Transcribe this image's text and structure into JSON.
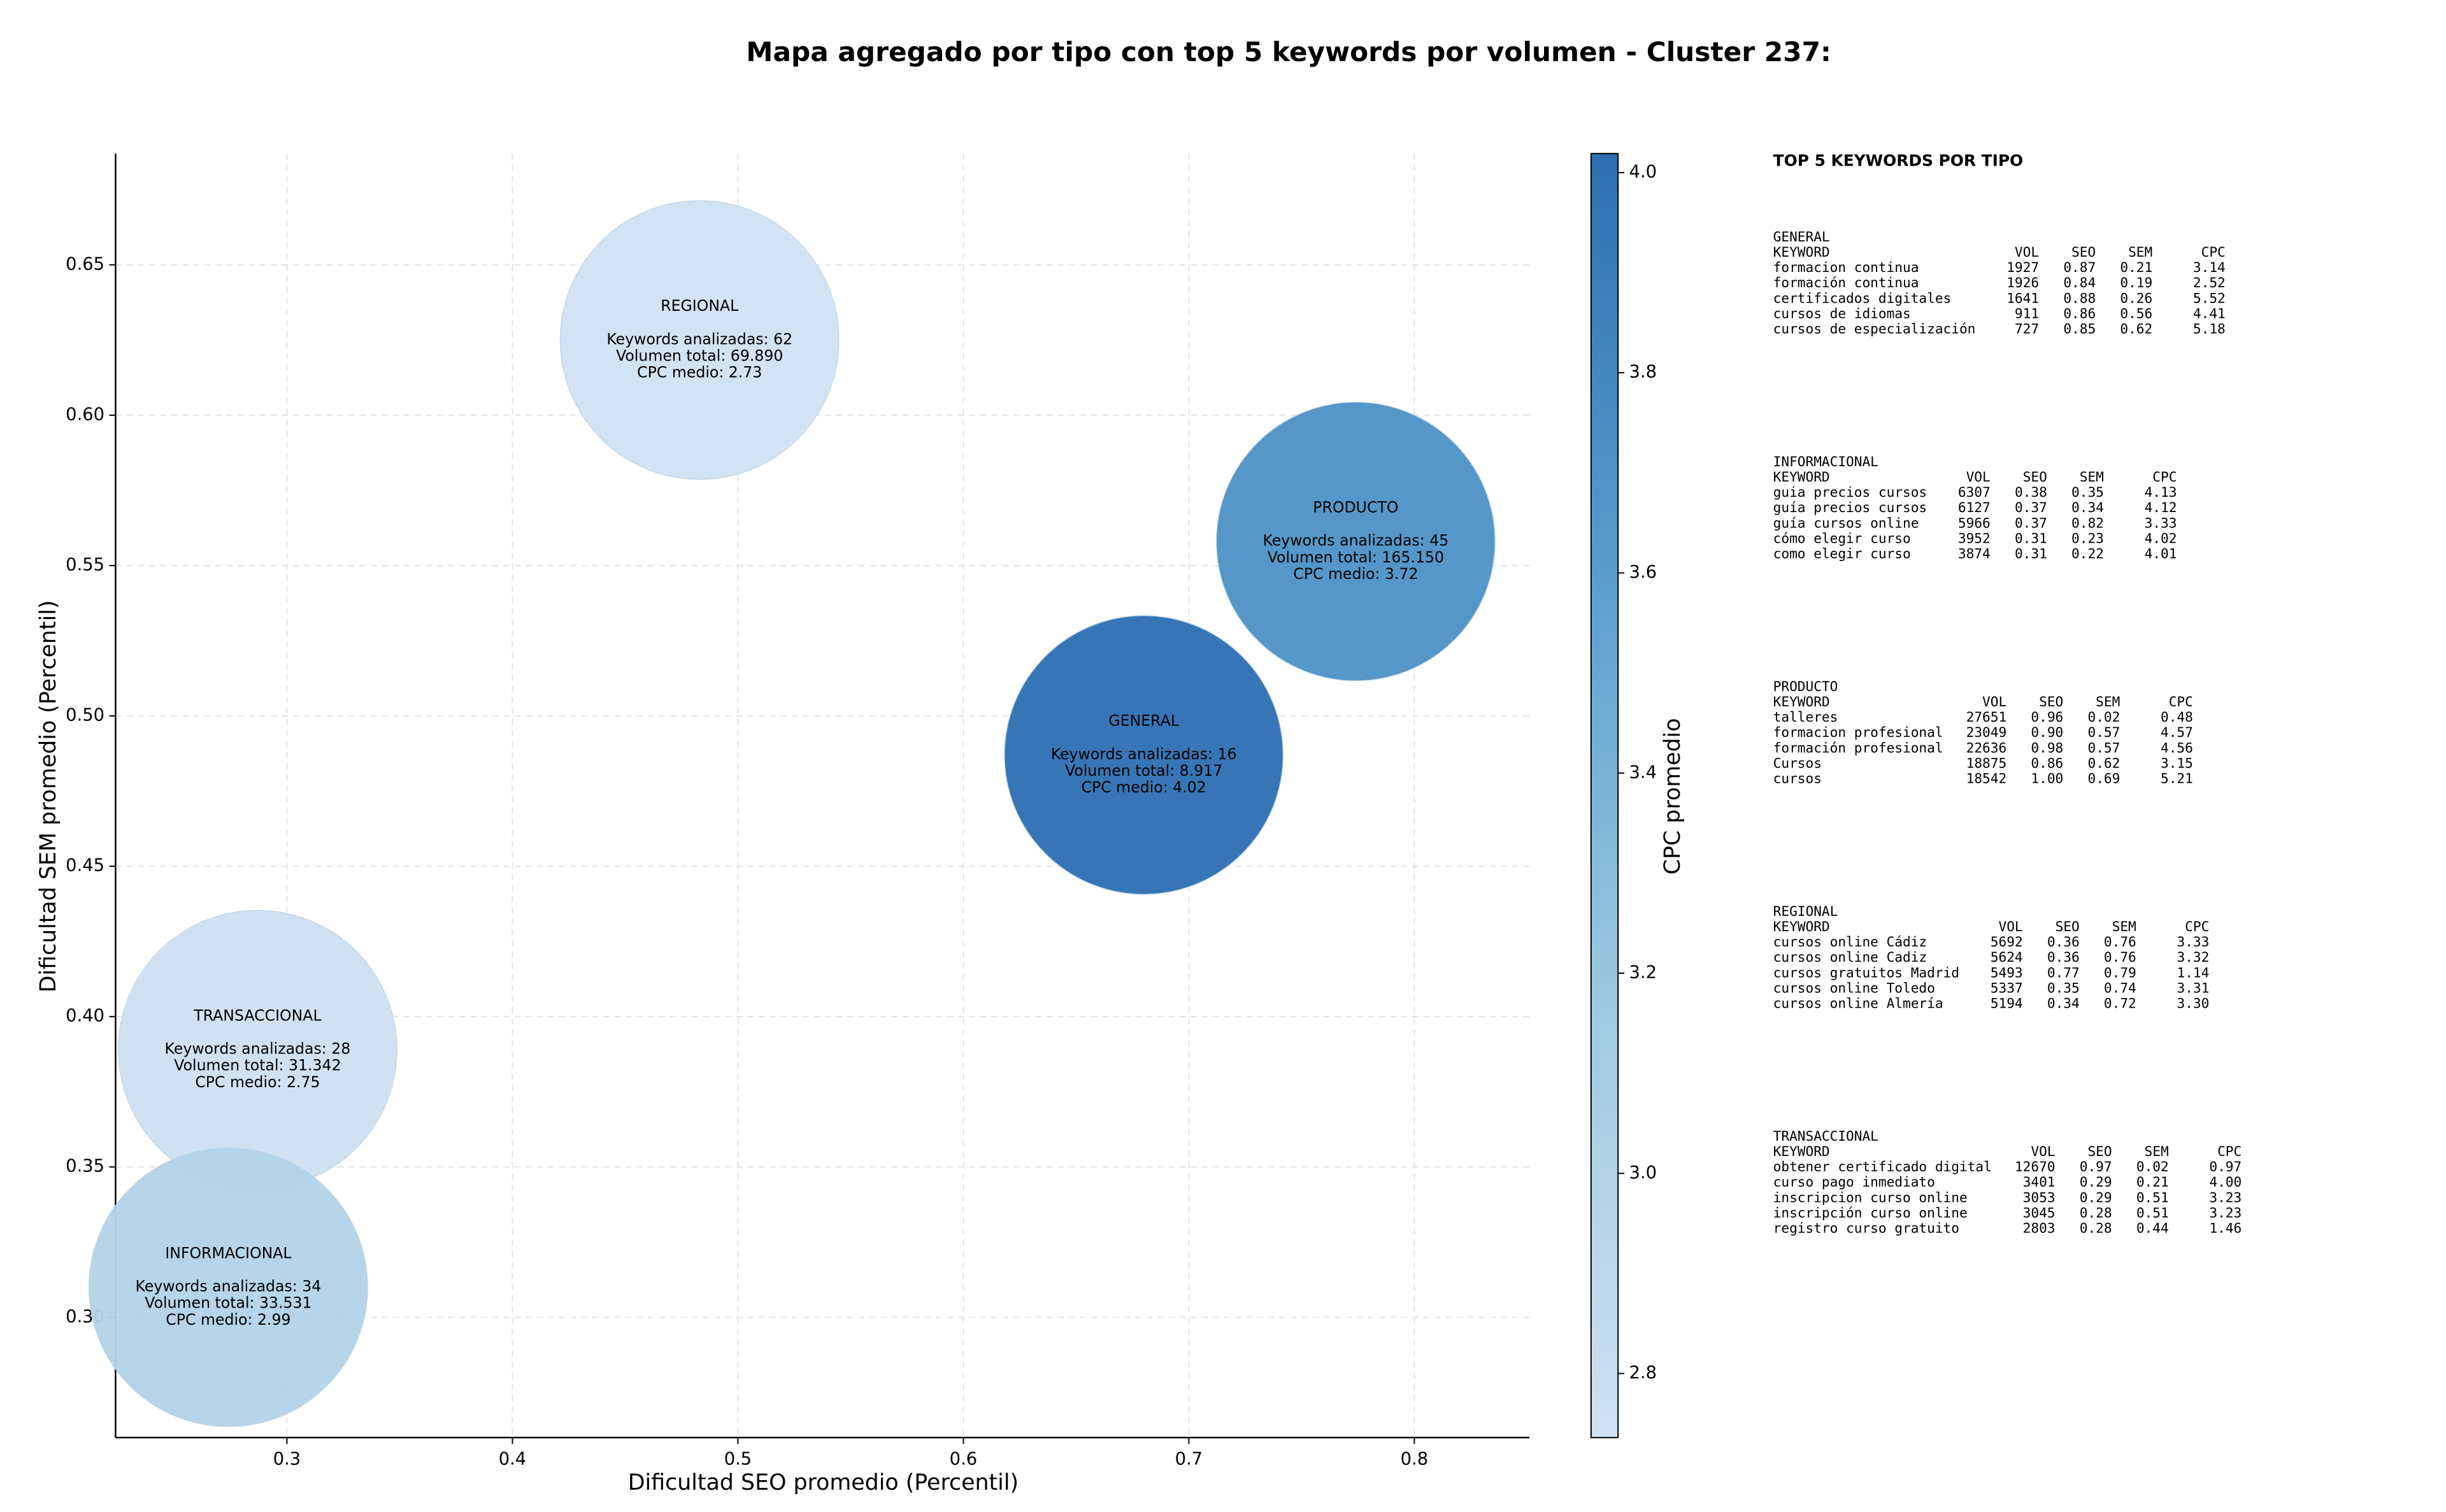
{
  "chart_data": {
    "type": "scatter",
    "title": "Mapa agregado por tipo con top 5 keywords por volumen - Cluster 237:",
    "x_label": "Dificultad SEO promedio (Percentil)",
    "y_label": "Dificultad SEM promedio (Percentil)",
    "colorbar_label": "CPC promedio",
    "xlim": [
      0.224,
      0.851
    ],
    "ylim": [
      0.26,
      0.687
    ],
    "xticks": [
      0.3,
      0.4,
      0.5,
      0.6,
      0.7,
      0.8
    ],
    "yticks": [
      {
        "value": 0.3,
        "label": "0.30"
      },
      0.35,
      {
        "value": 0.4,
        "label": "0.40"
      },
      0.45,
      {
        "value": 0.5,
        "label": "0.50"
      },
      0.55,
      {
        "value": 0.6,
        "label": "0.60"
      },
      0.65
    ],
    "clim": [
      2.736,
      4.019
    ],
    "cticks": [
      2.8,
      {
        "value": 3.0,
        "label": "3.0"
      },
      3.2,
      3.4,
      3.6,
      3.8,
      {
        "value": 4.0,
        "label": "4.0"
      }
    ],
    "colormap": [
      "#d0e1f2",
      "#9ecae1",
      "#5a9fce",
      "#2c6fb2"
    ],
    "grid": true,
    "points": [
      {
        "name": "REGIONAL",
        "x": 0.483,
        "y": 0.625,
        "cpc": 2.73,
        "lines": [
          "Keywords analizadas: 62",
          "Volumen total: 69.890",
          "CPC medio: 2.73"
        ]
      },
      {
        "name": "PRODUCTO",
        "x": 0.774,
        "y": 0.558,
        "cpc": 3.72,
        "lines": [
          "Keywords analizadas: 45",
          "Volumen total: 165.150",
          "CPC medio: 3.72"
        ]
      },
      {
        "name": "GENERAL",
        "x": 0.68,
        "y": 0.487,
        "cpc": 4.02,
        "lines": [
          "Keywords analizadas: 16",
          "Volumen total: 8.917",
          "CPC medio: 4.02"
        ]
      },
      {
        "name": "TRANSACCIONAL",
        "x": 0.287,
        "y": 0.389,
        "cpc": 2.75,
        "lines": [
          "Keywords analizadas: 28",
          "Volumen total: 31.342",
          "CPC medio: 2.75"
        ]
      },
      {
        "name": "INFORMACIONAL",
        "x": 0.274,
        "y": 0.31,
        "cpc": 2.99,
        "lines": [
          "Keywords analizadas: 34",
          "Volumen total: 33.531",
          "CPC medio: 2.99"
        ]
      }
    ]
  },
  "panel": {
    "title": "TOP 5 KEYWORDS POR TIPO",
    "sections": [
      {
        "title": "GENERAL",
        "columns": [
          "KEYWORD",
          "VOL",
          "SEO",
          "SEM",
          "CPC"
        ],
        "rows": [
          [
            "formacion continua",
            "1927",
            "0.87",
            "0.21",
            "3.14"
          ],
          [
            "formación continua",
            "1926",
            "0.84",
            "0.19",
            "2.52"
          ],
          [
            "certificados digitales",
            "1641",
            "0.88",
            "0.26",
            "5.52"
          ],
          [
            "cursos de idiomas",
            "911",
            "0.86",
            "0.56",
            "4.41"
          ],
          [
            "cursos de especialización",
            "727",
            "0.85",
            "0.62",
            "5.18"
          ]
        ]
      },
      {
        "title": "INFORMACIONAL",
        "columns": [
          "KEYWORD",
          "VOL",
          "SEO",
          "SEM",
          "CPC"
        ],
        "rows": [
          [
            "guia precios cursos",
            "6307",
            "0.38",
            "0.35",
            "4.13"
          ],
          [
            "guía precios cursos",
            "6127",
            "0.37",
            "0.34",
            "4.12"
          ],
          [
            "guía cursos online",
            "5966",
            "0.37",
            "0.82",
            "3.33"
          ],
          [
            "cómo elegir curso",
            "3952",
            "0.31",
            "0.23",
            "4.02"
          ],
          [
            "como elegir curso",
            "3874",
            "0.31",
            "0.22",
            "4.01"
          ]
        ]
      },
      {
        "title": "PRODUCTO",
        "columns": [
          "KEYWORD",
          "VOL",
          "SEO",
          "SEM",
          "CPC"
        ],
        "rows": [
          [
            "talleres",
            "27651",
            "0.96",
            "0.02",
            "0.48"
          ],
          [
            "formacion profesional",
            "23049",
            "0.90",
            "0.57",
            "4.57"
          ],
          [
            "formación profesional",
            "22636",
            "0.98",
            "0.57",
            "4.56"
          ],
          [
            "Cursos",
            "18875",
            "0.86",
            "0.62",
            "3.15"
          ],
          [
            "cursos",
            "18542",
            "1.00",
            "0.69",
            "5.21"
          ]
        ]
      },
      {
        "title": "REGIONAL",
        "columns": [
          "KEYWORD",
          "VOL",
          "SEO",
          "SEM",
          "CPC"
        ],
        "rows": [
          [
            "cursos online Cádiz",
            "5692",
            "0.36",
            "0.76",
            "3.33"
          ],
          [
            "cursos online Cadiz",
            "5624",
            "0.36",
            "0.76",
            "3.32"
          ],
          [
            "cursos gratuitos Madrid",
            "5493",
            "0.77",
            "0.79",
            "1.14"
          ],
          [
            "cursos online Toledo",
            "5337",
            "0.35",
            "0.74",
            "3.31"
          ],
          [
            "cursos online Almería",
            "5194",
            "0.34",
            "0.72",
            "3.30"
          ]
        ]
      },
      {
        "title": "TRANSACCIONAL",
        "columns": [
          "KEYWORD",
          "VOL",
          "SEO",
          "SEM",
          "CPC"
        ],
        "rows": [
          [
            "obtener certificado digital",
            "12670",
            "0.97",
            "0.02",
            "0.97"
          ],
          [
            "curso pago inmediato",
            "3401",
            "0.29",
            "0.21",
            "4.00"
          ],
          [
            "inscripcion curso online",
            "3053",
            "0.29",
            "0.51",
            "3.23"
          ],
          [
            "inscripción curso online",
            "3045",
            "0.28",
            "0.51",
            "3.23"
          ],
          [
            "registro curso gratuito",
            "2803",
            "0.28",
            "0.44",
            "1.46"
          ]
        ]
      }
    ]
  }
}
